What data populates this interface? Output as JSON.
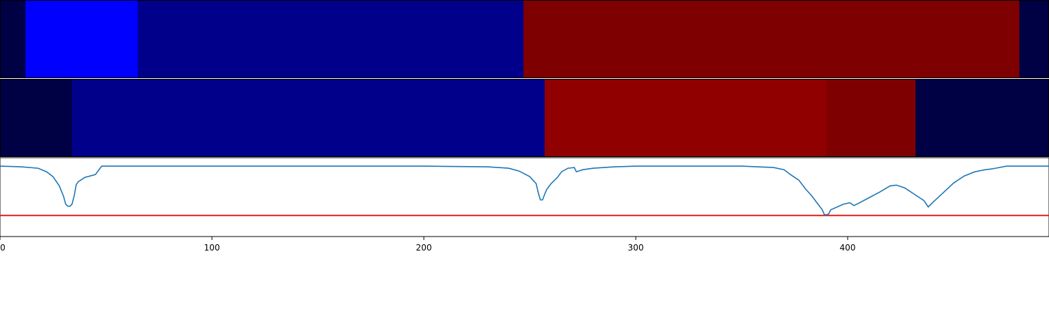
{
  "chart_data": {
    "type": "heatmap",
    "title": "",
    "xlabel": "",
    "ylabel": "",
    "xlim": [
      0,
      495
    ],
    "x_ticks": [
      "0",
      "100",
      "200",
      "300",
      "400"
    ],
    "x_tick_values": [
      0,
      100,
      200,
      300,
      400
    ],
    "grid": false,
    "legend": "none",
    "colormap": "seismic",
    "rows": [
      {
        "segments": [
          {
            "start": 0,
            "end": 12,
            "color": "#000044"
          },
          {
            "start": 12,
            "end": 65,
            "color": "#0000ff"
          },
          {
            "start": 65,
            "end": 247,
            "color": "#00008a"
          },
          {
            "start": 247,
            "end": 481,
            "color": "#7f0000"
          },
          {
            "start": 481,
            "end": 495,
            "color": "#000044"
          }
        ]
      },
      {
        "segments": [
          {
            "start": 0,
            "end": 34,
            "color": "#000044"
          },
          {
            "start": 34,
            "end": 257,
            "color": "#00008a"
          },
          {
            "start": 257,
            "end": 390,
            "color": "#900000"
          },
          {
            "start": 390,
            "end": 432,
            "color": "#7f0000"
          },
          {
            "start": 432,
            "end": 495,
            "color": "#000044"
          }
        ]
      }
    ],
    "line_panel": {
      "ylim": [
        0,
        1.12
      ],
      "threshold": 0.3,
      "threshold_color": "#e31a1c",
      "line_color": "#1f77b4",
      "x": [
        0,
        10,
        18,
        22,
        25,
        28,
        30,
        31,
        32,
        33,
        34,
        35,
        36,
        37,
        40,
        45,
        47,
        48,
        55,
        100,
        150,
        200,
        230,
        240,
        245,
        250,
        253,
        254,
        255,
        256,
        257,
        258,
        260,
        263,
        265,
        268,
        271,
        272,
        275,
        280,
        290,
        300,
        303,
        305,
        350,
        365,
        370,
        373,
        377,
        380,
        383,
        386,
        388,
        389,
        390,
        391,
        392,
        395,
        398,
        401,
        403,
        405,
        410,
        415,
        420,
        423,
        427,
        432,
        436,
        438,
        440,
        445,
        450,
        455,
        460,
        465,
        468,
        475,
        495
      ],
      "values": [
        1.0,
        0.99,
        0.97,
        0.92,
        0.85,
        0.72,
        0.57,
        0.46,
        0.43,
        0.43,
        0.46,
        0.58,
        0.74,
        0.78,
        0.84,
        0.88,
        0.96,
        1.0,
        1.0,
        1.0,
        1.0,
        1.0,
        0.99,
        0.97,
        0.93,
        0.85,
        0.75,
        0.62,
        0.52,
        0.52,
        0.6,
        0.67,
        0.75,
        0.84,
        0.92,
        0.97,
        0.98,
        0.92,
        0.95,
        0.97,
        0.99,
        1.0,
        1.0,
        1.0,
        1.0,
        0.98,
        0.95,
        0.88,
        0.8,
        0.68,
        0.58,
        0.46,
        0.38,
        0.31,
        0.31,
        0.32,
        0.38,
        0.42,
        0.46,
        0.48,
        0.44,
        0.47,
        0.55,
        0.63,
        0.72,
        0.73,
        0.69,
        0.59,
        0.51,
        0.42,
        0.48,
        0.62,
        0.76,
        0.86,
        0.92,
        0.95,
        0.96,
        1.0,
        1.0
      ]
    }
  }
}
